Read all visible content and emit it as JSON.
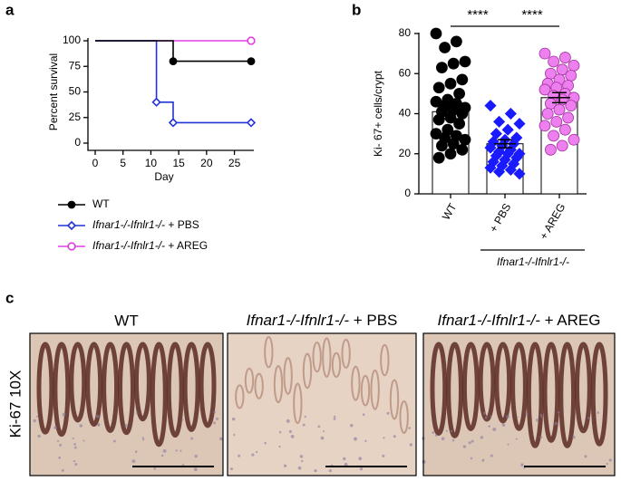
{
  "chart_data": [
    {
      "type": "line",
      "step": true,
      "label": "a",
      "xlabel": "Day",
      "ylabel": "Percent survival",
      "xlim": [
        0,
        28
      ],
      "ylim": [
        0,
        100
      ],
      "xticks": [
        0,
        5,
        10,
        15,
        20,
        25
      ],
      "yticks": [
        0,
        25,
        50,
        75,
        100
      ],
      "series": [
        {
          "name": "WT",
          "color": "#000000",
          "marker": "circle",
          "filled": true,
          "x": [
            0,
            14,
            28
          ],
          "values": [
            100,
            80,
            80
          ]
        },
        {
          "name": "Ifnar1-/-Ifnlr1-/- + PBS",
          "color": "#2233d6",
          "marker": "diamond",
          "filled": false,
          "x": [
            0,
            11,
            14,
            28
          ],
          "values": [
            100,
            40,
            20,
            20
          ]
        },
        {
          "name": "Ifnar1-/-Ifnlr1-/- + AREG",
          "color": "#e040e0",
          "marker": "octagon",
          "filled": false,
          "x": [
            0,
            28
          ],
          "values": [
            100,
            100
          ]
        }
      ]
    },
    {
      "type": "bar",
      "label": "b",
      "ylabel": "Ki- 67+ cells/crypt",
      "ylim": [
        0,
        80
      ],
      "yticks": [
        0,
        20,
        40,
        60,
        80
      ],
      "categories": [
        "WT",
        "+ PBS",
        "+ AREG"
      ],
      "group_label": "Ifnar1-/-Ifnlr1-/-",
      "values": [
        41,
        25,
        48
      ],
      "errors": [
        3.5,
        2,
        2.5
      ],
      "point_colors": [
        "#000000",
        "#1a1aff",
        "#ee7fee"
      ],
      "point_markers": [
        "circle",
        "diamond",
        "circle"
      ],
      "points": [
        [
          80,
          76,
          73,
          66,
          65,
          63,
          57,
          55,
          53,
          50,
          47,
          46,
          45,
          44,
          43,
          42,
          41,
          40,
          38,
          37,
          35,
          32,
          30,
          29,
          28,
          27,
          25,
          24,
          22,
          20,
          18
        ],
        [
          44,
          40,
          36,
          35,
          32,
          30,
          28,
          27,
          26,
          25,
          24,
          23,
          22,
          21,
          20,
          20,
          19,
          18,
          17,
          16,
          15,
          14,
          13,
          12,
          11,
          10
        ],
        [
          70,
          68,
          66,
          64,
          62,
          60,
          59,
          57,
          55,
          54,
          53,
          52,
          50,
          49,
          48,
          47,
          45,
          44,
          42,
          40,
          38,
          36,
          34,
          32,
          29,
          27,
          24,
          22
        ]
      ],
      "comparisons": [
        {
          "label": "****",
          "between": [
            "WT",
            "+ PBS"
          ]
        },
        {
          "label": "****",
          "between": [
            "+ PBS",
            "+ AREG"
          ]
        }
      ]
    }
  ],
  "panel_c": {
    "label": "c",
    "row_label": "Ki-67 10X",
    "titles": [
      "WT",
      "Ifnar1-/-Ifnlr1-/- + PBS",
      "Ifnar1-/-Ifnlr1-/- + AREG"
    ]
  }
}
